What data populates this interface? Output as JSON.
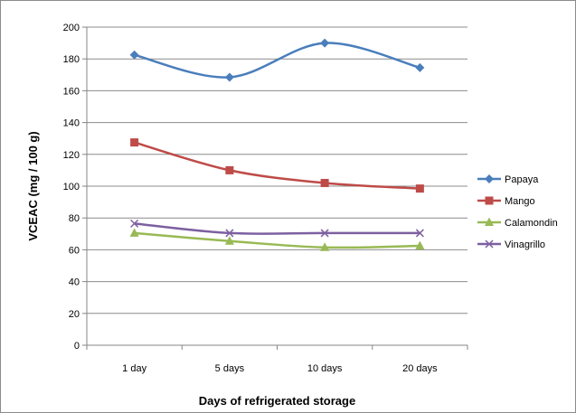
{
  "chart_data": {
    "type": "line",
    "title": "",
    "xlabel": "Days of refrigerated storage",
    "ylabel": "VCEAC (mg / 100 g)",
    "categories": [
      "1 day",
      "5 days",
      "10 days",
      "20 days"
    ],
    "ylim": [
      0,
      200
    ],
    "yticks": [
      0,
      20,
      40,
      60,
      80,
      100,
      120,
      140,
      160,
      180,
      200
    ],
    "grid": true,
    "legend_position": "right",
    "series": [
      {
        "name": "Papaya",
        "values": [
          182.5,
          168.5,
          190,
          174.5
        ],
        "color": "#4a7ebb",
        "marker": "diamond"
      },
      {
        "name": "Mango",
        "values": [
          127.5,
          110,
          102,
          98.5
        ],
        "color": "#be4b48",
        "marker": "square"
      },
      {
        "name": "Calamondin",
        "values": [
          70.5,
          65.5,
          61.5,
          62.5
        ],
        "color": "#98b954",
        "marker": "triangle"
      },
      {
        "name": "Vinagrillo",
        "values": [
          76.5,
          70.5,
          70.5,
          70.5
        ],
        "color": "#7d60a0",
        "marker": "x"
      }
    ]
  }
}
